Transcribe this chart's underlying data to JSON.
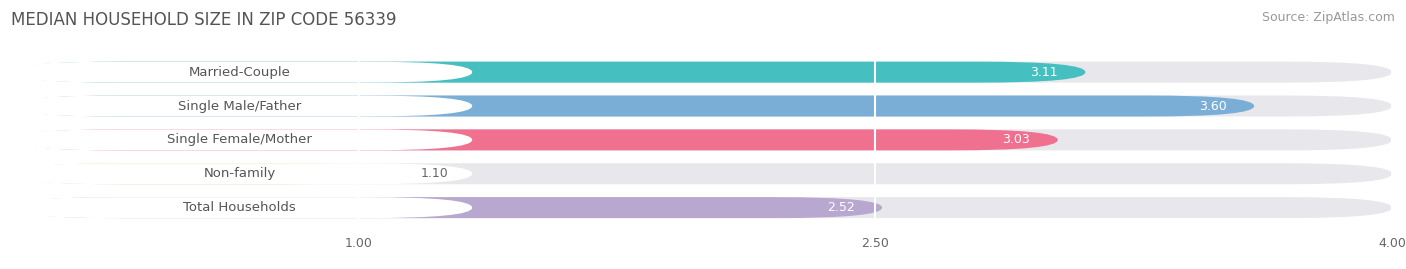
{
  "title": "MEDIAN HOUSEHOLD SIZE IN ZIP CODE 56339",
  "source": "Source: ZipAtlas.com",
  "categories": [
    "Married-Couple",
    "Single Male/Father",
    "Single Female/Mother",
    "Non-family",
    "Total Households"
  ],
  "values": [
    3.11,
    3.6,
    3.03,
    1.1,
    2.52
  ],
  "bar_colors": [
    "#45BFBF",
    "#7AAED6",
    "#F07090",
    "#F5C98A",
    "#B8A8D0"
  ],
  "bar_bg_color": "#E8E8EC",
  "xlim_data": [
    0,
    4.0
  ],
  "x_axis_start": 0.0,
  "xticks": [
    1.0,
    2.5,
    4.0
  ],
  "xtick_labels": [
    "1.00",
    "2.50",
    "4.00"
  ],
  "title_fontsize": 12,
  "source_fontsize": 9,
  "label_fontsize": 9.5,
  "value_fontsize": 9,
  "bar_height": 0.62,
  "background_color": "#FFFFFF",
  "bar_label_color": "#555555",
  "value_color_inside": "#FFFFFF",
  "value_color_outside": "#666666",
  "grid_color": "#FFFFFF",
  "label_bg_color": "#FFFFFF"
}
